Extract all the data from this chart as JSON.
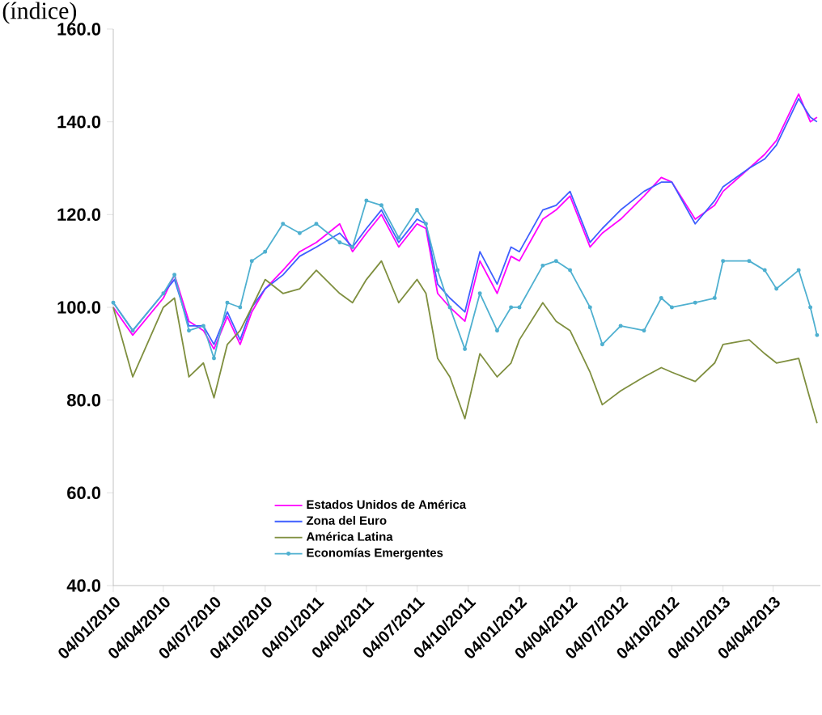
{
  "chart_data": {
    "type": "line",
    "title": "(índice)",
    "xlim": [
      "2010-01-04",
      "2013-06-28"
    ],
    "ylim": [
      40,
      160
    ],
    "xticks": [
      {
        "value": "2010-01-04",
        "label": "04/01/2010"
      },
      {
        "value": "2010-04-04",
        "label": "04/04/2010"
      },
      {
        "value": "2010-07-04",
        "label": "04/07/2010"
      },
      {
        "value": "2010-10-04",
        "label": "04/10/2010"
      },
      {
        "value": "2011-01-04",
        "label": "04/01/2011"
      },
      {
        "value": "2011-04-04",
        "label": "04/04/2011"
      },
      {
        "value": "2011-07-04",
        "label": "04/07/2011"
      },
      {
        "value": "2011-10-04",
        "label": "04/10/2011"
      },
      {
        "value": "2012-01-04",
        "label": "04/01/2012"
      },
      {
        "value": "2012-04-04",
        "label": "04/04/2012"
      },
      {
        "value": "2012-07-04",
        "label": "04/07/2012"
      },
      {
        "value": "2012-10-04",
        "label": "04/10/2012"
      },
      {
        "value": "2013-01-04",
        "label": "04/01/2013"
      },
      {
        "value": "2013-04-04",
        "label": "04/04/2013"
      }
    ],
    "yticks": [
      {
        "value": 40,
        "label": "40.0"
      },
      {
        "value": 60,
        "label": "60.0"
      },
      {
        "value": 80,
        "label": "80.0"
      },
      {
        "value": 100,
        "label": "100.0"
      },
      {
        "value": 120,
        "label": "120.0"
      },
      {
        "value": 140,
        "label": "140.0"
      },
      {
        "value": 160,
        "label": "160.0"
      }
    ],
    "x": [
      "2010-01-04",
      "2010-02-08",
      "2010-04-04",
      "2010-04-24",
      "2010-05-20",
      "2010-06-15",
      "2010-07-04",
      "2010-07-28",
      "2010-08-20",
      "2010-09-10",
      "2010-10-04",
      "2010-11-05",
      "2010-12-05",
      "2011-01-04",
      "2011-02-15",
      "2011-03-10",
      "2011-04-04",
      "2011-05-01",
      "2011-06-01",
      "2011-07-04",
      "2011-07-20",
      "2011-08-10",
      "2011-09-01",
      "2011-09-28",
      "2011-10-25",
      "2011-11-25",
      "2011-12-20",
      "2012-01-04",
      "2012-02-15",
      "2012-03-10",
      "2012-04-04",
      "2012-05-10",
      "2012-06-01",
      "2012-07-04",
      "2012-08-15",
      "2012-09-15",
      "2012-10-04",
      "2012-11-15",
      "2012-12-20",
      "2013-01-04",
      "2013-02-20",
      "2013-03-20",
      "2013-04-10",
      "2013-05-20",
      "2013-06-10",
      "2013-06-22"
    ],
    "series": [
      {
        "name": "Estados Unidos de América",
        "color": "#ff00ff",
        "values": [
          100,
          94,
          102,
          107,
          97,
          95,
          91,
          98,
          92,
          99,
          104,
          108,
          112,
          114,
          118,
          112,
          116,
          120,
          113,
          118,
          117,
          103,
          100,
          97,
          110,
          103,
          111,
          110,
          119,
          121,
          124,
          113,
          116,
          119,
          124,
          128,
          127,
          119,
          122,
          125,
          130,
          133,
          136,
          146,
          140,
          141
        ]
      },
      {
        "name": "Zona del Euro",
        "color": "#3f5fff",
        "values": [
          101,
          95,
          103,
          106,
          96,
          96,
          92,
          99,
          93,
          100,
          104,
          107,
          111,
          113,
          116,
          113,
          117,
          121,
          114,
          119,
          118,
          105,
          102,
          99,
          112,
          105,
          113,
          112,
          121,
          122,
          125,
          114,
          117,
          121,
          125,
          127,
          127,
          118,
          123,
          126,
          130,
          132,
          135,
          145,
          141,
          140
        ]
      },
      {
        "name": "América Latina",
        "color": "#7f8f3f",
        "values": [
          100,
          85,
          100,
          102,
          85,
          88,
          80.5,
          92,
          95,
          100,
          106,
          103,
          104,
          108,
          103,
          101,
          106,
          110,
          101,
          106,
          103,
          89,
          85,
          76,
          90,
          85,
          88,
          93,
          101,
          97,
          95,
          86,
          79,
          82,
          85,
          87,
          86,
          84,
          88,
          92,
          93,
          90,
          88,
          89,
          80,
          75
        ]
      },
      {
        "name": "Economías Emergentes",
        "color": "#4fb0d0",
        "marker": "circle",
        "values": [
          101,
          95,
          103,
          107,
          95,
          96,
          89,
          101,
          100,
          110,
          112,
          118,
          116,
          118,
          114,
          113,
          123,
          122,
          115,
          121,
          118,
          108,
          100,
          91,
          103,
          95,
          100,
          100,
          109,
          110,
          108,
          100,
          92,
          96,
          95,
          102,
          100,
          101,
          102,
          110,
          110,
          108,
          104,
          108,
          100,
          94
        ]
      }
    ],
    "legend": "bottom",
    "grid": false
  }
}
